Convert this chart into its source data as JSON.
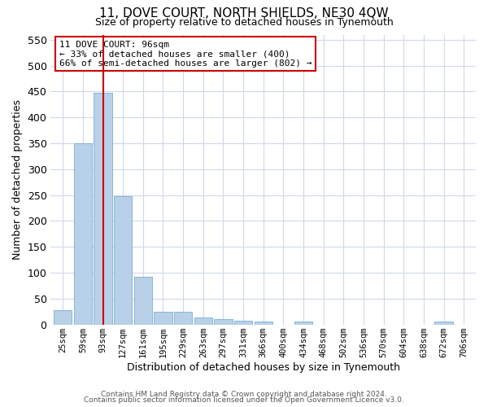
{
  "title": "11, DOVE COURT, NORTH SHIELDS, NE30 4QW",
  "subtitle": "Size of property relative to detached houses in Tynemouth",
  "xlabel": "Distribution of detached houses by size in Tynemouth",
  "ylabel": "Number of detached properties",
  "bar_labels": [
    "25sqm",
    "59sqm",
    "93sqm",
    "127sqm",
    "161sqm",
    "195sqm",
    "229sqm",
    "263sqm",
    "297sqm",
    "331sqm",
    "366sqm",
    "400sqm",
    "434sqm",
    "468sqm",
    "502sqm",
    "536sqm",
    "570sqm",
    "604sqm",
    "638sqm",
    "672sqm",
    "706sqm"
  ],
  "bar_values": [
    28,
    350,
    447,
    248,
    93,
    25,
    25,
    14,
    11,
    8,
    5,
    0,
    5,
    0,
    0,
    0,
    0,
    0,
    0,
    5,
    0
  ],
  "bar_color": "#b8d0e8",
  "bar_edge_color": "#7aafd4",
  "vline_x": 2,
  "vline_color": "#cc0000",
  "annotation_title": "11 DOVE COURT: 96sqm",
  "annotation_line1": "← 33% of detached houses are smaller (400)",
  "annotation_line2": "66% of semi-detached houses are larger (802) →",
  "annotation_box_color": "#cc0000",
  "ylim": [
    0,
    560
  ],
  "yticks": [
    0,
    50,
    100,
    150,
    200,
    250,
    300,
    350,
    400,
    450,
    500,
    550
  ],
  "footer1": "Contains HM Land Registry data © Crown copyright and database right 2024.",
  "footer2": "Contains public sector information licensed under the Open Government Licence v3.0.",
  "bg_color": "#ffffff",
  "grid_color": "#d0d8e8"
}
